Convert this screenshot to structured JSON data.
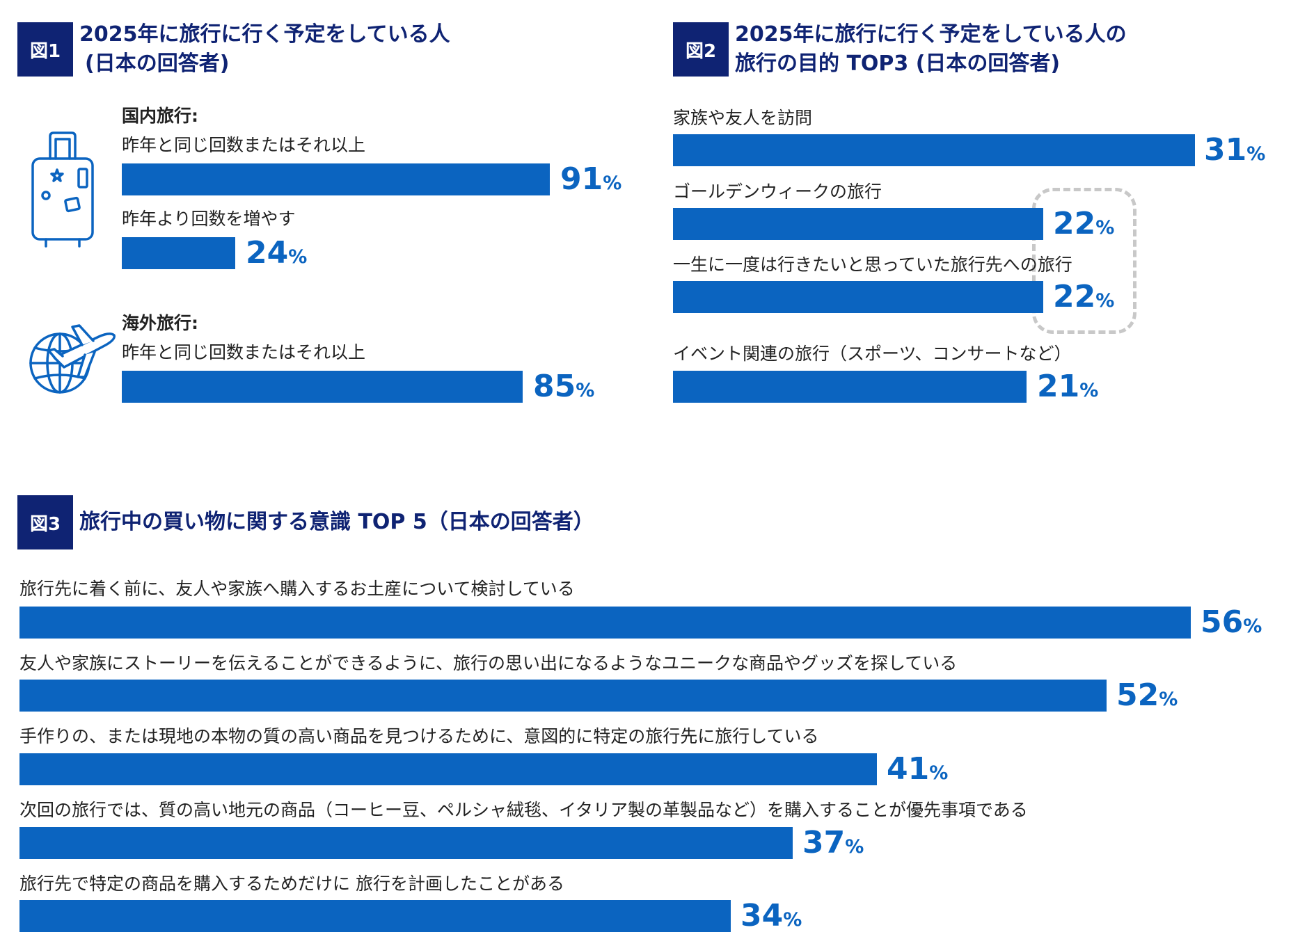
{
  "colors": {
    "bar": "#0b64c0",
    "navy": "#0f2373"
  },
  "icons": {
    "suitcase": "suitcase-icon",
    "globe_plane": "globe-plane-icon"
  },
  "chart_data": [
    {
      "type": "bar",
      "badge": "図1",
      "title_line1": "2025年に旅行に行く予定をしている人",
      "title_line2": "(日本の回答者)",
      "groups": [
        {
          "heading": "国内旅行:",
          "items": [
            {
              "label": "昨年と同じ回数またはそれ以上",
              "value": 91,
              "display": "91"
            },
            {
              "label": "昨年より回数を増やす",
              "value": 24,
              "display": "24"
            }
          ]
        },
        {
          "heading": "海外旅行:",
          "items": [
            {
              "label": "昨年と同じ回数またはそれ以上",
              "value": 85,
              "display": "85"
            }
          ]
        }
      ],
      "unit": "%"
    },
    {
      "type": "bar",
      "badge": "図2",
      "title_line1": "2025年に旅行に行く予定をしている人の",
      "title_line2": "旅行の目的 TOP3 (日本の回答者)",
      "items": [
        {
          "label": "家族や友人を訪問",
          "value": 31,
          "display": "31"
        },
        {
          "label": "ゴールデンウィークの旅行",
          "value": 22,
          "display": "22"
        },
        {
          "label": "一生に一度は行きたいと思っていた旅行先への旅行",
          "value": 22,
          "display": "22"
        },
        {
          "label": "イベント関連の旅行（スポーツ、コンサートなど）",
          "value": 21,
          "display": "21"
        }
      ],
      "unit": "%"
    },
    {
      "type": "bar",
      "badge": "図3",
      "title_line1": "旅行中の買い物に関する意識 TOP 5（日本の回答者）",
      "items": [
        {
          "label": "旅行先に着く前に、友人や家族へ購入するお土産について検討している",
          "value": 56,
          "display": "56"
        },
        {
          "label": "友人や家族にストーリーを伝えることができるように、旅行の思い出になるようなユニークな商品やグッズを探している",
          "value": 52,
          "display": "52"
        },
        {
          "label": "手作りの、または現地の本物の質の高い商品を見つけるために、意図的に特定の旅行先に旅行している",
          "value": 41,
          "display": "41"
        },
        {
          "label": "次回の旅行では、質の高い地元の商品（コーヒー豆、ペルシャ絨毯、イタリア製の革製品など）を購入することが優先事項である",
          "value": 37,
          "display": "37"
        },
        {
          "label": "旅行先で特定の商品を購入するためだけに 旅行を計画したことがある",
          "value": 34,
          "display": "34"
        }
      ],
      "unit": "%"
    }
  ]
}
